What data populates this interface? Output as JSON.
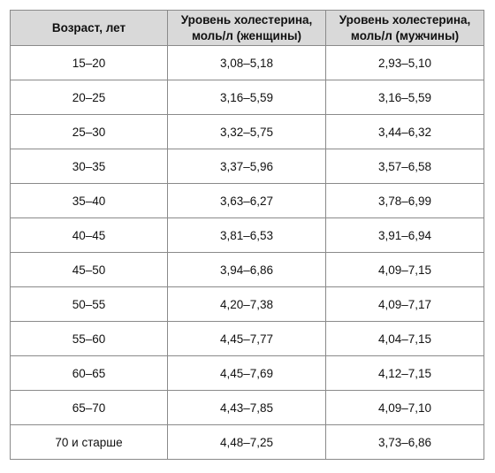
{
  "table": {
    "headers": [
      "Возраст, лет",
      "Уровень холестерина,\nмоль/л (женщины)",
      "Уровень холестерина,\nмоль/л (мужчины)"
    ],
    "rows": [
      [
        "15–20",
        "3,08–5,18",
        "2,93–5,10"
      ],
      [
        "20–25",
        "3,16–5,59",
        "3,16–5,59"
      ],
      [
        "25–30",
        "3,32–5,75",
        "3,44–6,32"
      ],
      [
        "30–35",
        "3,37–5,96",
        "3,57–6,58"
      ],
      [
        "35–40",
        "3,63–6,27",
        "3,78–6,99"
      ],
      [
        "40–45",
        "3,81–6,53",
        "3,91–6,94"
      ],
      [
        "45–50",
        "3,94–6,86",
        "4,09–7,15"
      ],
      [
        "50–55",
        "4,20–7,38",
        "4,09–7,17"
      ],
      [
        "55–60",
        "4,45–7,77",
        "4,04–7,15"
      ],
      [
        "60–65",
        "4,45–7,69",
        "4,12–7,15"
      ],
      [
        "65–70",
        "4,43–7,85",
        "4,09–7,10"
      ],
      [
        "70 и старше",
        "4,48–7,25",
        "3,73–6,86"
      ]
    ]
  }
}
